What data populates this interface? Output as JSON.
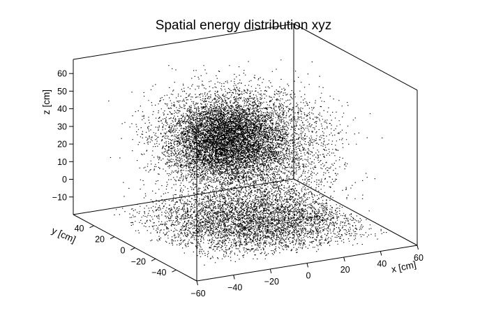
{
  "chart_data": {
    "type": "scatter",
    "projection": "3d-box",
    "title": "Spatial energy distribution xyz",
    "xlabel": "x [cm]",
    "ylabel": "y [cm]",
    "zlabel": "z [cm]",
    "xlim": [
      -60,
      60
    ],
    "ylim": [
      -60,
      60
    ],
    "zlim": [
      -20,
      68
    ],
    "xticks": [
      "−60",
      "−40",
      "−20",
      "0",
      "20",
      "40",
      "60"
    ],
    "xtick_values": [
      -60,
      -40,
      -20,
      0,
      20,
      40,
      60
    ],
    "yticks": [
      "−40",
      "−20",
      "0",
      "20",
      "40"
    ],
    "ytick_values": [
      -40,
      -20,
      0,
      20,
      40
    ],
    "zticks": [
      "−10",
      "0",
      "10",
      "20",
      "30",
      "40",
      "50",
      "60"
    ],
    "ztick_values": [
      -10,
      0,
      10,
      20,
      30,
      40,
      50,
      60
    ],
    "marker_color": "#000000",
    "grid": false,
    "legend": "none",
    "clusters": [
      {
        "component": "dense core",
        "center": [
          -5,
          10,
          30
        ],
        "spread": [
          13,
          13,
          10
        ],
        "share": 0.38
      },
      {
        "component": "diffuse halo",
        "center": [
          0,
          0,
          25
        ],
        "spread": [
          24,
          24,
          18
        ],
        "share": 0.3
      },
      {
        "component": "bottom layer",
        "center": [
          5,
          0,
          -16
        ],
        "spread": [
          26,
          26,
          2
        ],
        "share": 0.32
      }
    ],
    "point_count_estimate": 16000
  }
}
